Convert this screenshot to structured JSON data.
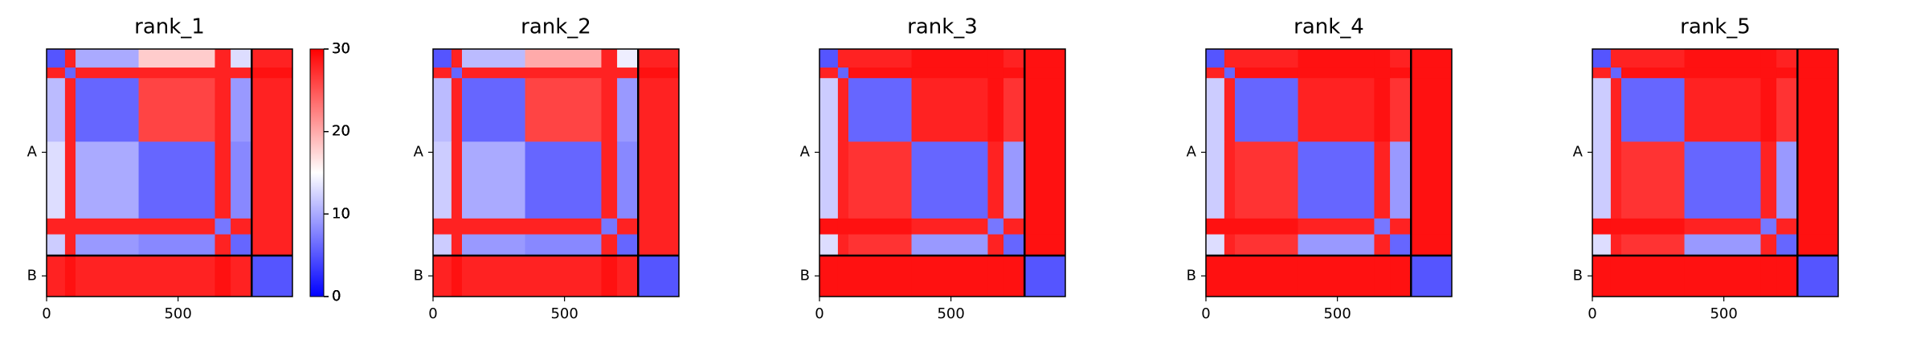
{
  "chart_data": [
    {
      "type": "heatmap",
      "title": "rank_1",
      "xlim": [
        0,
        935
      ],
      "ylim": [
        935,
        0
      ],
      "xticks": [
        0,
        500
      ],
      "yticks": [
        {
          "value": 390,
          "label": "A"
        },
        {
          "value": 857,
          "label": "B"
        }
      ],
      "segments": [
        0,
        70,
        110,
        350,
        640,
        700,
        780,
        935
      ],
      "chain_breaks": [
        780
      ],
      "matrix": [
        [
          5,
          28,
          10,
          18,
          28,
          13,
          28
        ],
        [
          28,
          6,
          28,
          28,
          28,
          28,
          29
        ],
        [
          11,
          28,
          6,
          26,
          28,
          9,
          28
        ],
        [
          13,
          28,
          10,
          6,
          28,
          8,
          28
        ],
        [
          28,
          28,
          28,
          28,
          7,
          28,
          28
        ],
        [
          12,
          28,
          9,
          8,
          28,
          6,
          28
        ],
        [
          28,
          29,
          28,
          28,
          29,
          28,
          5
        ]
      ],
      "clim": [
        0,
        30
      ],
      "cticks": [
        0,
        10,
        20,
        30
      ],
      "colormap": [
        "#0000ff",
        "#ffffff",
        "#ff0000"
      ]
    },
    {
      "type": "heatmap",
      "title": "rank_2",
      "xlim": [
        0,
        935
      ],
      "ylim": [
        935,
        0
      ],
      "xticks": [
        0,
        500
      ],
      "yticks": [
        {
          "value": 390,
          "label": "A"
        },
        {
          "value": 857,
          "label": "B"
        }
      ],
      "segments": [
        0,
        70,
        110,
        350,
        640,
        700,
        780,
        935
      ],
      "chain_breaks": [
        780
      ],
      "matrix": [
        [
          5,
          28,
          11,
          20,
          28,
          14,
          28
        ],
        [
          28,
          6,
          28,
          28,
          28,
          28,
          29
        ],
        [
          11,
          28,
          6,
          26,
          28,
          9,
          28
        ],
        [
          12,
          28,
          10,
          6,
          28,
          8,
          28
        ],
        [
          28,
          28,
          28,
          28,
          7,
          28,
          28
        ],
        [
          12,
          28,
          9,
          8,
          28,
          6,
          28
        ],
        [
          28,
          29,
          28,
          28,
          29,
          28,
          5
        ]
      ],
      "clim": [
        0,
        30
      ],
      "cticks": [
        0,
        10,
        20,
        30
      ],
      "colormap": [
        "#0000ff",
        "#ffffff",
        "#ff0000"
      ]
    },
    {
      "type": "heatmap",
      "title": "rank_3",
      "xlim": [
        0,
        935
      ],
      "ylim": [
        935,
        0
      ],
      "xticks": [
        0,
        500
      ],
      "yticks": [
        {
          "value": 390,
          "label": "A"
        },
        {
          "value": 857,
          "label": "B"
        }
      ],
      "segments": [
        0,
        70,
        110,
        350,
        640,
        700,
        780,
        935
      ],
      "chain_breaks": [
        780
      ],
      "matrix": [
        [
          5,
          28,
          28,
          29,
          29,
          28,
          29
        ],
        [
          28,
          6,
          29,
          29,
          29,
          29,
          29
        ],
        [
          12,
          28,
          6,
          28,
          29,
          27,
          29
        ],
        [
          12,
          28,
          27,
          6,
          28,
          9,
          29
        ],
        [
          29,
          29,
          29,
          28,
          7,
          28,
          29
        ],
        [
          13,
          28,
          27,
          9,
          28,
          6,
          29
        ],
        [
          29,
          29,
          29,
          29,
          29,
          29,
          5
        ]
      ],
      "clim": [
        0,
        30
      ],
      "cticks": [
        0,
        10,
        20,
        30
      ],
      "colormap": [
        "#0000ff",
        "#ffffff",
        "#ff0000"
      ]
    },
    {
      "type": "heatmap",
      "title": "rank_4",
      "xlim": [
        0,
        935
      ],
      "ylim": [
        935,
        0
      ],
      "xticks": [
        0,
        500
      ],
      "yticks": [
        {
          "value": 390,
          "label": "A"
        },
        {
          "value": 857,
          "label": "B"
        }
      ],
      "segments": [
        0,
        70,
        110,
        350,
        640,
        700,
        780,
        935
      ],
      "chain_breaks": [
        780
      ],
      "matrix": [
        [
          5,
          28,
          28,
          29,
          29,
          28,
          29
        ],
        [
          28,
          6,
          29,
          29,
          29,
          29,
          29
        ],
        [
          12,
          28,
          6,
          28,
          29,
          27,
          29
        ],
        [
          12,
          28,
          27,
          6,
          28,
          9,
          29
        ],
        [
          29,
          29,
          29,
          28,
          7,
          28,
          29
        ],
        [
          13,
          28,
          27,
          9,
          28,
          6,
          29
        ],
        [
          29,
          29,
          29,
          29,
          29,
          29,
          5
        ]
      ],
      "clim": [
        0,
        30
      ],
      "cticks": [
        0,
        10,
        20,
        30
      ],
      "colormap": [
        "#0000ff",
        "#ffffff",
        "#ff0000"
      ]
    },
    {
      "type": "heatmap",
      "title": "rank_5",
      "xlim": [
        0,
        935
      ],
      "ylim": [
        935,
        0
      ],
      "xticks": [
        0,
        500
      ],
      "yticks": [
        {
          "value": 390,
          "label": "A"
        },
        {
          "value": 857,
          "label": "B"
        }
      ],
      "segments": [
        0,
        70,
        110,
        350,
        640,
        700,
        780,
        935
      ],
      "chain_breaks": [
        780
      ],
      "matrix": [
        [
          5,
          28,
          28,
          29,
          29,
          28,
          29
        ],
        [
          28,
          6,
          29,
          29,
          29,
          29,
          29
        ],
        [
          12,
          28,
          6,
          28,
          29,
          27,
          29
        ],
        [
          12,
          28,
          27,
          6,
          28,
          9,
          29
        ],
        [
          29,
          29,
          29,
          28,
          7,
          28,
          29
        ],
        [
          13,
          28,
          27,
          9,
          28,
          6,
          29
        ],
        [
          29,
          29,
          29,
          29,
          29,
          29,
          5
        ]
      ],
      "clim": [
        0,
        30
      ],
      "cticks": [
        0,
        10,
        20,
        30
      ],
      "colormap": [
        "#0000ff",
        "#ffffff",
        "#ff0000"
      ]
    }
  ]
}
